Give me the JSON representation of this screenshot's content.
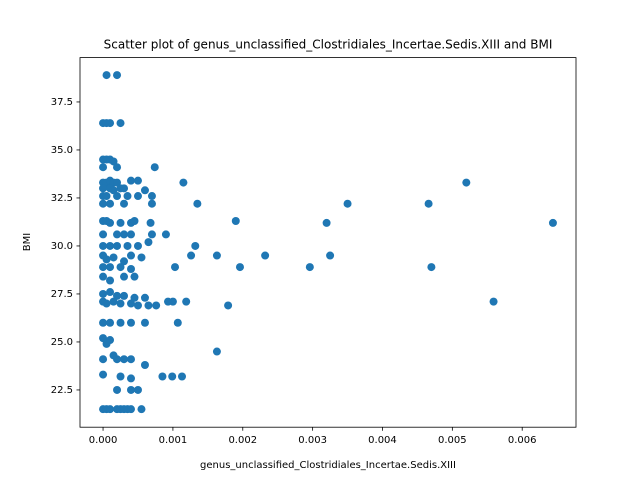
{
  "chart_data": {
    "type": "scatter",
    "title": "Scatter plot of genus_unclassified_Clostridiales_Incertae.Sedis.XIII and BMI",
    "xlabel": "genus_unclassified_Clostridiales_Incertae.Sedis.XIII",
    "ylabel": "BMI",
    "color": "#1f77b4",
    "xlim": [
      -0.00033,
      0.00677
    ],
    "ylim": [
      20.56,
      39.81
    ],
    "xticks": [
      {
        "value": 0,
        "label": "0.000"
      },
      {
        "value": 0.001,
        "label": "0.001"
      },
      {
        "value": 0.002,
        "label": "0.002"
      },
      {
        "value": 0.003,
        "label": "0.003"
      },
      {
        "value": 0.004,
        "label": "0.004"
      },
      {
        "value": 0.005,
        "label": "0.005"
      },
      {
        "value": 0.006,
        "label": "0.006"
      }
    ],
    "yticks": [
      22.5,
      {
        "value": 25,
        "label": "25.0"
      },
      27.5,
      {
        "value": 30,
        "label": "30.0"
      },
      32.5,
      {
        "value": 35,
        "label": "35.0"
      },
      37.5
    ],
    "x": [
      5e-05,
      0.0002,
      0,
      5e-05,
      0.0001,
      0.00025,
      0,
      5e-05,
      0.0001,
      0.00015,
      0,
      0.0002,
      0.00074,
      0,
      5e-05,
      0.0001,
      0.00015,
      0.0002,
      0.0004,
      0.0005,
      0.00115,
      0.0052,
      0,
      0.0001,
      0.00015,
      0.00025,
      0.0003,
      0.0006,
      0,
      5e-05,
      0.0002,
      0.00035,
      0.0005,
      0.0007,
      0,
      0.0001,
      0.0003,
      0.0007,
      0.00135,
      0.0035,
      0.00466,
      0,
      5e-05,
      0.0001,
      0.00025,
      0.0004,
      0.00045,
      0.00068,
      0.0019,
      0.0032,
      0.00644,
      0,
      0.0002,
      0.0003,
      0.0004,
      0.0007,
      0.0009,
      0,
      0.0001,
      0.0002,
      0.00035,
      0.0005,
      0.00065,
      0.00132,
      0,
      5e-05,
      0.00015,
      0.0003,
      0.0004,
      0.00055,
      0.00126,
      0.00163,
      0.00232,
      0.00325,
      0,
      0.0001,
      0.00025,
      0.0004,
      0.00103,
      0.00196,
      0.00296,
      0.0047,
      0,
      0.0001,
      0.0003,
      0.00045,
      0,
      0.0001,
      0.0002,
      0.0003,
      0.00045,
      0.0006,
      0,
      5e-05,
      0.00015,
      0.00025,
      0.0004,
      0.0005,
      0.00065,
      0.00076,
      0.00093,
      0.001,
      0.00119,
      0.00179,
      0.00559,
      0,
      0.0001,
      0.00025,
      0.0004,
      0.0006,
      0.00107,
      0,
      5e-05,
      0.0001,
      0.0002,
      0,
      0.00015,
      0.0003,
      0.0004,
      0.0006,
      0.00163,
      0,
      0.00025,
      0.0004,
      0.00085,
      0.00099,
      0.00113,
      0.0002,
      0.0004,
      0.0005,
      0,
      5e-05,
      0.0001,
      0.0002,
      0.00025,
      0.0003,
      0.00035,
      0.0004,
      0.00055
    ],
    "values": [
      38.9,
      38.9,
      36.4,
      36.4,
      36.4,
      36.4,
      34.5,
      34.5,
      34.5,
      34.4,
      34.1,
      34.1,
      34.1,
      33.3,
      33.3,
      33.4,
      33.3,
      33.3,
      33.4,
      33.4,
      33.3,
      33.3,
      33.0,
      33.0,
      32.9,
      33.0,
      33.0,
      32.9,
      32.6,
      32.6,
      32.6,
      32.6,
      32.6,
      32.6,
      32.2,
      32.2,
      32.2,
      32.2,
      32.2,
      32.2,
      32.2,
      31.3,
      31.3,
      31.2,
      31.2,
      31.2,
      31.3,
      31.2,
      31.3,
      31.2,
      31.2,
      30.6,
      30.6,
      30.6,
      30.6,
      30.6,
      30.6,
      30.0,
      30.0,
      30.0,
      30.0,
      30.0,
      30.2,
      30.0,
      29.5,
      29.3,
      29.4,
      29.2,
      29.5,
      29.4,
      29.5,
      29.5,
      29.5,
      29.5,
      28.9,
      28.9,
      28.9,
      28.8,
      28.9,
      28.9,
      28.9,
      28.9,
      28.4,
      28.2,
      28.4,
      28.4,
      27.5,
      27.6,
      27.4,
      27.4,
      27.3,
      27.3,
      27.1,
      27.0,
      27.1,
      27.0,
      27.0,
      26.9,
      26.9,
      26.9,
      27.1,
      27.1,
      27.1,
      26.9,
      27.1,
      26.0,
      26.0,
      26.0,
      26.0,
      26.0,
      26.0,
      25.2,
      24.9,
      25.1,
      24.1,
      24.1,
      24.3,
      24.1,
      24.1,
      23.8,
      24.5,
      23.3,
      23.2,
      23.1,
      23.2,
      23.2,
      23.2,
      22.5,
      22.5,
      22.5,
      21.5,
      21.5,
      21.5,
      21.5,
      21.5,
      21.5,
      21.5,
      21.5,
      21.5
    ]
  }
}
